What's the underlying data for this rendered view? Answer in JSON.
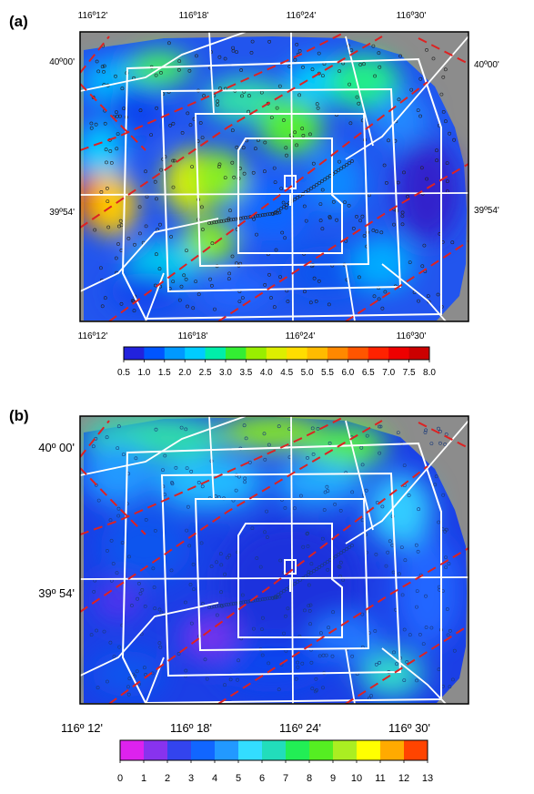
{
  "panels": [
    {
      "label": "(a)",
      "lon_top": [
        "116º12'",
        "116º18'",
        "116º24'",
        "116º30'"
      ],
      "lon_bottom": [
        "116º12'",
        "116º18'",
        "116º24'",
        "116º30'"
      ],
      "lat_left": [
        "40º00'",
        "39º54'"
      ],
      "lat_right": [
        "40º00'",
        "39º54'"
      ],
      "colorbar": {
        "ticks": [
          "0.5",
          "1.0",
          "1.5",
          "2.0",
          "2.5",
          "3.0",
          "3.5",
          "4.0",
          "4.5",
          "5.0",
          "5.5",
          "6.0",
          "6.5",
          "7.0",
          "7.5",
          "8.0"
        ],
        "colors": [
          "#2222dd",
          "#0055ff",
          "#0099ff",
          "#00ccff",
          "#00eeaa",
          "#33ee33",
          "#99ee00",
          "#ddee00",
          "#ffdd00",
          "#ffbb00",
          "#ff8800",
          "#ff5500",
          "#ff2200",
          "#ee0000",
          "#cc0000"
        ]
      }
    },
    {
      "label": "(b)",
      "lon_bottom": [
        "116º 12'",
        "116º 18'",
        "116º 24'",
        "116º 30'"
      ],
      "lat_left": [
        "40º 00'",
        "39º 54'"
      ],
      "colorbar": {
        "ticks": [
          "0",
          "1",
          "2",
          "3",
          "4",
          "5",
          "6",
          "7",
          "8",
          "9",
          "10",
          "11",
          "12",
          "13"
        ],
        "colors": [
          "#dd22ee",
          "#8833ee",
          "#3344ee",
          "#1166ff",
          "#2299ff",
          "#33ddff",
          "#22ddbb",
          "#22ee55",
          "#55ee22",
          "#aaee22",
          "#ffff00",
          "#ffaa00",
          "#ff4400"
        ]
      }
    }
  ]
}
